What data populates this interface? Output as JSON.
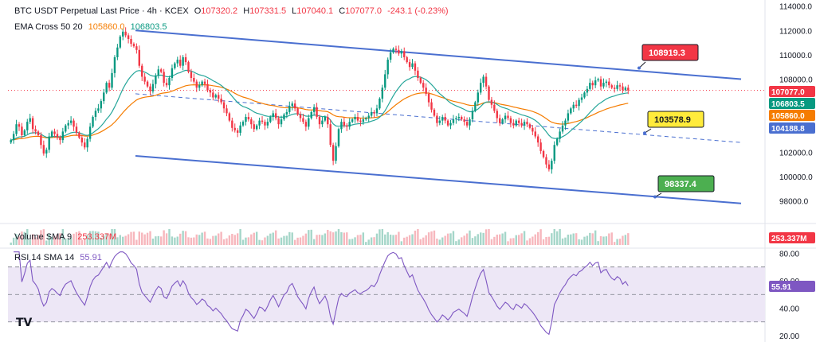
{
  "header": {
    "symbol": "BTC USDT Perpetual Last Price · 4h · KCEX",
    "o_label": "O",
    "o": "107320.2",
    "h_label": "H",
    "h": "107331.5",
    "l_label": "L",
    "l": "107040.1",
    "c_label": "C",
    "c": "107077.0",
    "change": "-243.1 (-0.23%)"
  },
  "ema_legend": {
    "name": "EMA Cross 50 20",
    "v1": "105860.0",
    "v2": "106803.5"
  },
  "volume_legend": {
    "name": "Volume SMA 9",
    "value": "253.337M"
  },
  "rsi_legend": {
    "name": "RSI 14 SMA 14",
    "value": "55.91"
  },
  "colors": {
    "up": "#089981",
    "down": "#f23645",
    "channel": "#4a6fd0",
    "ema_fast": "#26a69a",
    "ema_slow": "#f57c00",
    "rsi": "#7e57c2",
    "rsi_band": "#ede7f6",
    "last_price": "#f23645"
  },
  "chart_data": [
    {
      "type": "candlestick",
      "title": "BTC USDT Perpetual Last Price · 4h · KCEX",
      "price_axis": {
        "ticks": [
          "114000.0",
          "112000.0",
          "110000.0",
          "108000.0",
          "106000.0",
          "104000.0",
          "102000.0",
          "100000.0",
          "98000.0"
        ],
        "range": [
          97000,
          114500
        ]
      },
      "axis_badges": [
        {
          "text": "107077.0",
          "value": 107077.0,
          "color": "#f23645"
        },
        {
          "text": "106803.5",
          "value": 106803.5,
          "color": "#089981"
        },
        {
          "text": "105860.0",
          "value": 105860.0,
          "color": "#f57c00"
        },
        {
          "text": "104188.8",
          "value": 104188.8,
          "color": "#4a6fd0"
        }
      ],
      "channel_labels": [
        {
          "text": "108919.3",
          "value": 108919.3,
          "style": "red"
        },
        {
          "text": "103578.9",
          "value": 103578.9,
          "style": "yellow"
        },
        {
          "text": "98337.4",
          "value": 98337.4,
          "style": "green"
        }
      ],
      "closes": [
        103000,
        103500,
        104300,
        104100,
        103400,
        103800,
        104500,
        104800,
        103900,
        103700,
        103400,
        102600,
        101900,
        102200,
        103300,
        103700,
        103500,
        103200,
        103000,
        103700,
        104200,
        104400,
        104600,
        104100,
        103600,
        103200,
        102800,
        102400,
        103100,
        104100,
        104900,
        105400,
        105600,
        106200,
        106900,
        107700,
        107300,
        108500,
        109800,
        110600,
        111500,
        111900,
        111600,
        111300,
        110900,
        110700,
        110400,
        109100,
        108200,
        107800,
        107400,
        107000,
        107600,
        108300,
        108800,
        108600,
        107700,
        107500,
        108100,
        108900,
        109300,
        109600,
        109100,
        109800,
        109400,
        108600,
        108100,
        107800,
        107300,
        107500,
        107800,
        107600,
        107100,
        106900,
        106500,
        106700,
        106400,
        106100,
        105600,
        105200,
        104600,
        104000,
        103800,
        103600,
        104200,
        104500,
        104900,
        104700,
        104300,
        103900,
        104200,
        104600,
        104500,
        104200,
        104500,
        104900,
        105200,
        104800,
        104300,
        104700,
        105100,
        105300,
        105800,
        106000,
        105600,
        105100,
        104800,
        104500,
        104100,
        104800,
        105300,
        105700,
        104900,
        104300,
        104600,
        104900,
        104300,
        102600,
        101300,
        102500,
        103900,
        104500,
        104200,
        104100,
        104500,
        104700,
        104900,
        104600,
        104500,
        104700,
        104800,
        105000,
        105300,
        105200,
        105600,
        106400,
        107300,
        108400,
        109600,
        110200,
        110500,
        110400,
        110100,
        110300,
        109800,
        109400,
        109000,
        109300,
        108700,
        108100,
        107700,
        107300,
        106800,
        106100,
        105500,
        105000,
        104400,
        104600,
        104900,
        104600,
        104200,
        104400,
        104700,
        104800,
        104900,
        104700,
        104500,
        104200,
        104700,
        105400,
        106100,
        106900,
        107700,
        108200,
        107400,
        106300,
        105900,
        105400,
        104800,
        104400,
        104700,
        105000,
        104800,
        104400,
        104200,
        104600,
        104400,
        104200,
        104500,
        104300,
        104000,
        103700,
        103300,
        102800,
        102100,
        101600,
        101000,
        100600,
        101300,
        102600,
        103100,
        103700,
        104200,
        104600,
        105200,
        105600,
        105900,
        105800,
        106300,
        106500,
        106900,
        107200,
        107700,
        107500,
        107900,
        108000,
        107400,
        107700,
        107800,
        107500,
        107300,
        107200,
        107500,
        107400,
        107100,
        107300,
        107077
      ],
      "ema20_last": 106803.5,
      "ema50_last": 105860.0,
      "channel_upper": [
        [
          0,
          112000
        ],
        [
          1,
          108000
        ]
      ],
      "channel_mid": [
        [
          0,
          106800
        ],
        [
          1,
          102800
        ]
      ],
      "channel_lower": [
        [
          0,
          101700
        ],
        [
          1,
          97800
        ]
      ]
    },
    {
      "type": "bar",
      "title": "Volume SMA 9",
      "last_value": "253.337M",
      "axis_badge": "253.337M"
    },
    {
      "type": "line",
      "title": "RSI 14 SMA 14",
      "y_ticks": [
        "80.00",
        "60.00",
        "40.00",
        "20.00"
      ],
      "ylim": [
        20,
        82
      ],
      "bands": [
        70,
        50,
        30
      ],
      "last_value": 55.91,
      "axis_badge": "55.91"
    }
  ]
}
